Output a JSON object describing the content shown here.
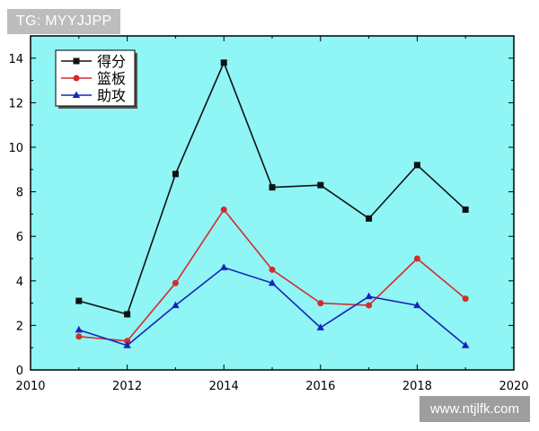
{
  "watermark_top": "TG: MYYJJPP",
  "watermark_bottom": "www.ntjlfk.com",
  "colors": {
    "plot_bg": "#8ff5f5",
    "score": "#111111",
    "rebounds": "#d62b2b",
    "assists": "#1525b8"
  },
  "chart_data": {
    "type": "line",
    "title": "",
    "xlabel": "",
    "ylabel": "",
    "xlim": [
      2010,
      2020
    ],
    "ylim": [
      0,
      15
    ],
    "x_ticks": [
      2010,
      2012,
      2014,
      2016,
      2018,
      2020
    ],
    "y_ticks": [
      0,
      2,
      4,
      6,
      8,
      10,
      12,
      14
    ],
    "x": [
      2011,
      2012,
      2013,
      2014,
      2015,
      2016,
      2017,
      2018,
      2019
    ],
    "legend_position": "top-left",
    "grid": false,
    "series": [
      {
        "name": "得分",
        "marker": "square",
        "color": "#111111",
        "values": [
          3.1,
          2.5,
          8.8,
          13.8,
          8.2,
          8.3,
          6.8,
          9.2,
          7.2
        ]
      },
      {
        "name": "篮板",
        "marker": "circle",
        "color": "#d62b2b",
        "values": [
          1.5,
          1.3,
          3.9,
          7.2,
          4.5,
          3.0,
          2.9,
          5.0,
          3.2
        ]
      },
      {
        "name": "助攻",
        "marker": "triangle",
        "color": "#1525b8",
        "values": [
          1.8,
          1.1,
          2.9,
          4.6,
          3.9,
          1.9,
          3.3,
          2.9,
          1.1
        ]
      }
    ]
  }
}
